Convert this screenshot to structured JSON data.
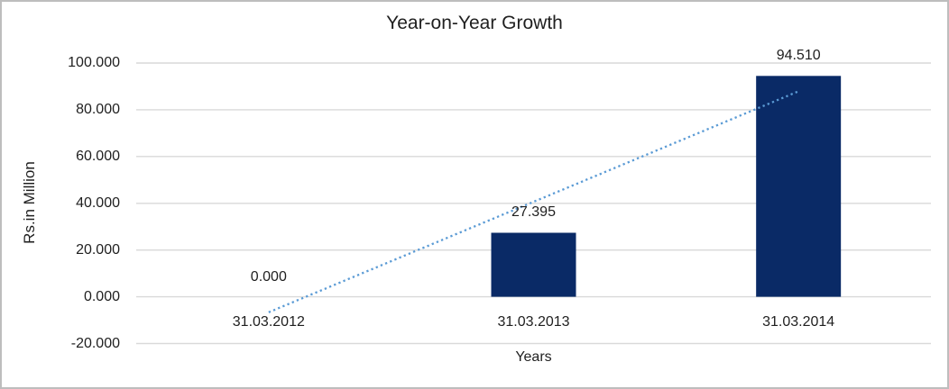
{
  "window": {
    "background": "#ffffff",
    "border_color": "#bdbdbd"
  },
  "chart_data": {
    "type": "bar",
    "title": "Year-on-Year Growth",
    "xlabel": "Years",
    "ylabel": "Rs.in Million",
    "categories": [
      "31.03.2012",
      "31.03.2013",
      "31.03.2014"
    ],
    "values": [
      0.0,
      27.395,
      94.51
    ],
    "data_labels": [
      "0.000",
      "27.395",
      "94.510"
    ],
    "y_ticks": [
      100,
      80,
      60,
      40,
      20,
      0,
      -20
    ],
    "y_tick_labels": [
      "100.000",
      "80.000",
      "60.000",
      "40.000",
      "20.000",
      "0.000",
      "-20.000"
    ],
    "ylim": [
      -20,
      100
    ],
    "grid": true,
    "legend": "none",
    "bar_color": "#0a2a66",
    "gridline_color": "#d9d9d9",
    "text_color": "#1f1f1f",
    "trendline": {
      "type": "linear",
      "style": "dotted",
      "color": "#5b9bd5",
      "values_at_ends": [
        -6.62,
        87.89
      ]
    }
  }
}
